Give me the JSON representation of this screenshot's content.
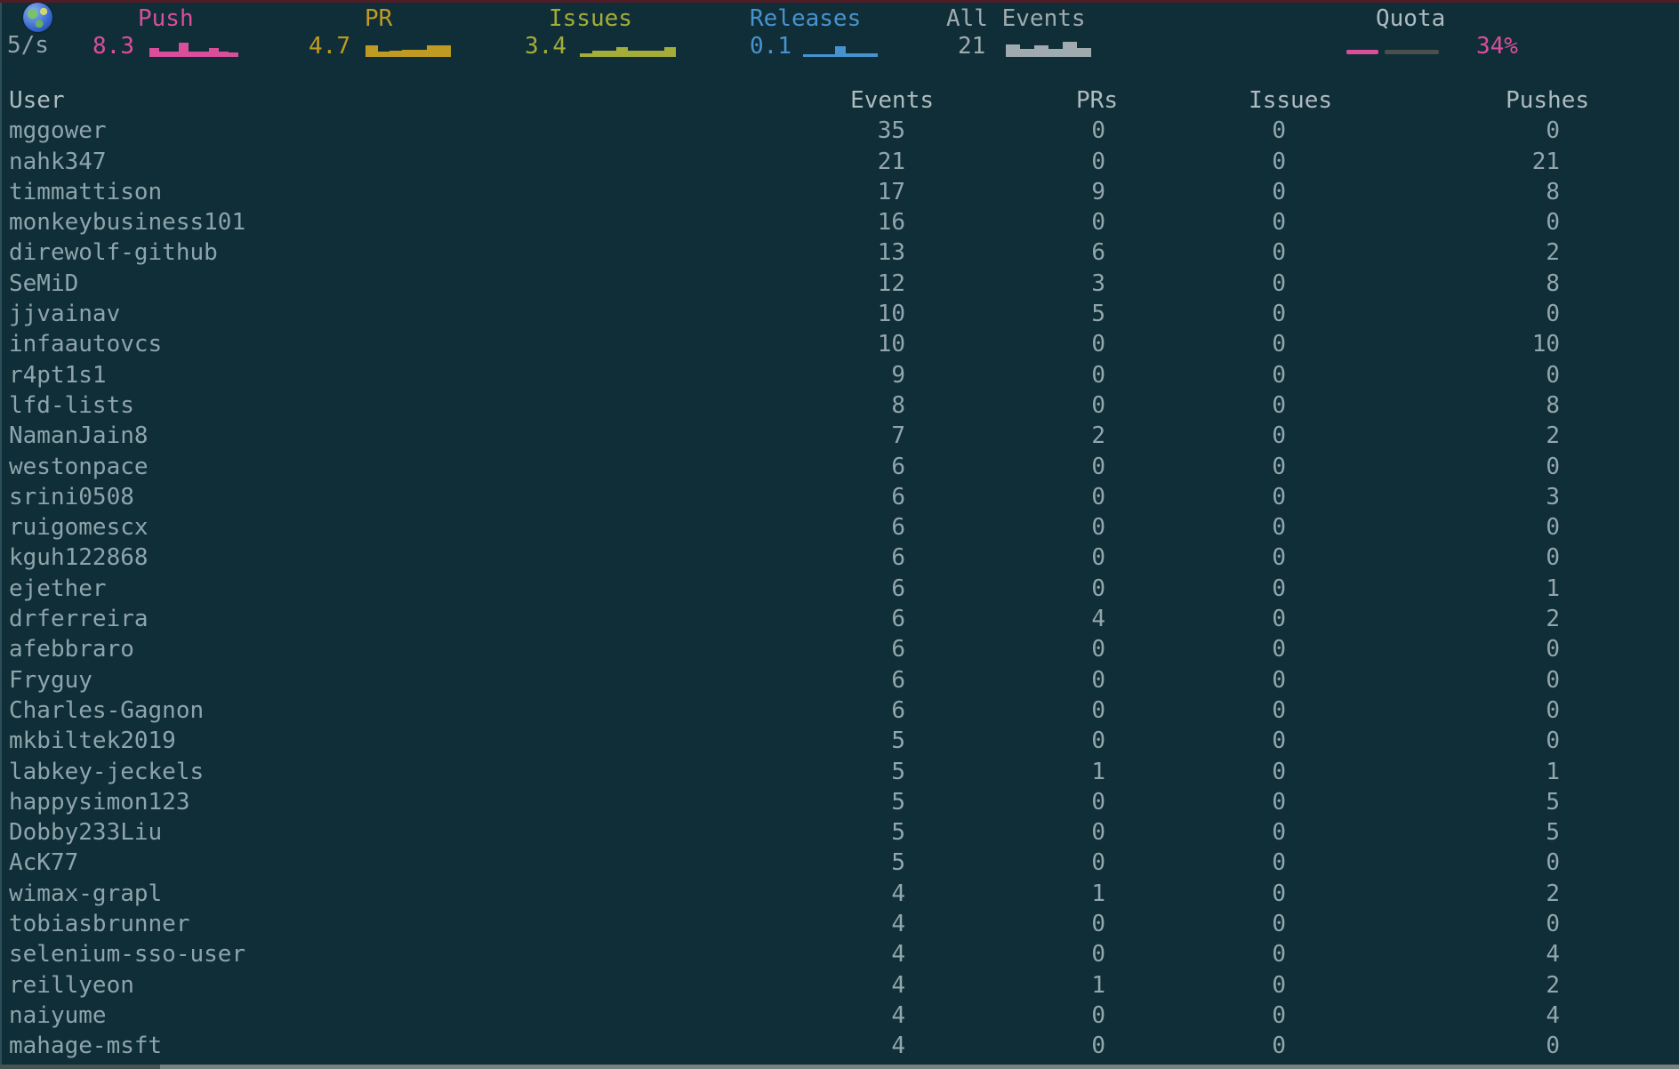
{
  "status": {
    "rate": "5/s",
    "globe_icon": "globe-americas"
  },
  "header": {
    "metrics": [
      {
        "id": "push",
        "label": "Push",
        "value": "8.3",
        "color": "#d94f9b",
        "spark": [
          10,
          6,
          6,
          16,
          6,
          6,
          10,
          6,
          5
        ]
      },
      {
        "id": "pr",
        "label": "PR",
        "value": "4.7",
        "color": "#bf9b22",
        "spark": [
          13,
          6,
          7,
          8,
          8,
          13,
          13
        ]
      },
      {
        "id": "issues",
        "label": "Issues",
        "value": "3.4",
        "color": "#a4ad37",
        "spark": [
          4,
          7,
          7,
          11,
          7,
          7,
          7,
          11
        ]
      },
      {
        "id": "releases",
        "label": "Releases",
        "value": "0.1",
        "color": "#4793cf",
        "spark": [
          3,
          3,
          3,
          12,
          4,
          4,
          4
        ]
      },
      {
        "id": "all",
        "label": "All Events",
        "value": "21",
        "color": "#9fabae",
        "spark": [
          14,
          9,
          13,
          9,
          17,
          10
        ]
      }
    ],
    "quota": {
      "label": "Quota",
      "percent_text": "34%",
      "percent_value": 34,
      "used_color": "#d94f9b",
      "track_color": "#4a504b"
    }
  },
  "table": {
    "columns": [
      "User",
      "Events",
      "PRs",
      "Issues",
      "Pushes"
    ],
    "rows": [
      {
        "user": "mggower",
        "events": 35,
        "prs": 0,
        "issues": 0,
        "pushes": 0
      },
      {
        "user": "nahk347",
        "events": 21,
        "prs": 0,
        "issues": 0,
        "pushes": 21
      },
      {
        "user": "timmattison",
        "events": 17,
        "prs": 9,
        "issues": 0,
        "pushes": 8
      },
      {
        "user": "monkeybusiness101",
        "events": 16,
        "prs": 0,
        "issues": 0,
        "pushes": 0
      },
      {
        "user": "direwolf-github",
        "events": 13,
        "prs": 6,
        "issues": 0,
        "pushes": 2
      },
      {
        "user": "SeMiD",
        "events": 12,
        "prs": 3,
        "issues": 0,
        "pushes": 8
      },
      {
        "user": "jjvainav",
        "events": 10,
        "prs": 5,
        "issues": 0,
        "pushes": 0
      },
      {
        "user": "infaautovcs",
        "events": 10,
        "prs": 0,
        "issues": 0,
        "pushes": 10
      },
      {
        "user": "r4pt1s1",
        "events": 9,
        "prs": 0,
        "issues": 0,
        "pushes": 0
      },
      {
        "user": "lfd-lists",
        "events": 8,
        "prs": 0,
        "issues": 0,
        "pushes": 8
      },
      {
        "user": "NamanJain8",
        "events": 7,
        "prs": 2,
        "issues": 0,
        "pushes": 2
      },
      {
        "user": "westonpace",
        "events": 6,
        "prs": 0,
        "issues": 0,
        "pushes": 0
      },
      {
        "user": "srini0508",
        "events": 6,
        "prs": 0,
        "issues": 0,
        "pushes": 3
      },
      {
        "user": "ruigomescx",
        "events": 6,
        "prs": 0,
        "issues": 0,
        "pushes": 0
      },
      {
        "user": "kguh122868",
        "events": 6,
        "prs": 0,
        "issues": 0,
        "pushes": 0
      },
      {
        "user": "ejether",
        "events": 6,
        "prs": 0,
        "issues": 0,
        "pushes": 1
      },
      {
        "user": "drferreira",
        "events": 6,
        "prs": 4,
        "issues": 0,
        "pushes": 2
      },
      {
        "user": "afebbraro",
        "events": 6,
        "prs": 0,
        "issues": 0,
        "pushes": 0
      },
      {
        "user": "Fryguy",
        "events": 6,
        "prs": 0,
        "issues": 0,
        "pushes": 0
      },
      {
        "user": "Charles-Gagnon",
        "events": 6,
        "prs": 0,
        "issues": 0,
        "pushes": 0
      },
      {
        "user": "mkbiltek2019",
        "events": 5,
        "prs": 0,
        "issues": 0,
        "pushes": 0
      },
      {
        "user": "labkey-jeckels",
        "events": 5,
        "prs": 1,
        "issues": 0,
        "pushes": 1
      },
      {
        "user": "happysimon123",
        "events": 5,
        "prs": 0,
        "issues": 0,
        "pushes": 5
      },
      {
        "user": "Dobby233Liu",
        "events": 5,
        "prs": 0,
        "issues": 0,
        "pushes": 5
      },
      {
        "user": "AcK77",
        "events": 5,
        "prs": 0,
        "issues": 0,
        "pushes": 0
      },
      {
        "user": "wimax-grapl",
        "events": 4,
        "prs": 1,
        "issues": 0,
        "pushes": 2
      },
      {
        "user": "tobiasbrunner",
        "events": 4,
        "prs": 0,
        "issues": 0,
        "pushes": 0
      },
      {
        "user": "selenium-sso-user",
        "events": 4,
        "prs": 0,
        "issues": 0,
        "pushes": 4
      },
      {
        "user": "reillyeon",
        "events": 4,
        "prs": 1,
        "issues": 0,
        "pushes": 2
      },
      {
        "user": "naiyume",
        "events": 4,
        "prs": 0,
        "issues": 0,
        "pushes": 4
      },
      {
        "user": "mahage-msft",
        "events": 4,
        "prs": 0,
        "issues": 0,
        "pushes": 0
      }
    ]
  }
}
